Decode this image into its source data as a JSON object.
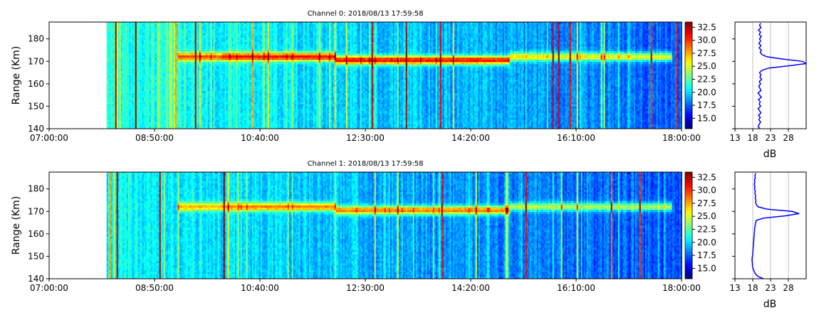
{
  "colorscale": [
    "#00007f",
    "#0000ff",
    "#007fff",
    "#00ffff",
    "#7fff7f",
    "#ffff00",
    "#ff7f00",
    "#ff0000",
    "#7f0000"
  ],
  "chart_data": [
    {
      "type": "heatmap",
      "title": "Channel 0: 2018/08/13 17:59:58",
      "ylabel": "Range (Km)",
      "xlabel": "",
      "x_ticks": [
        "07:00:00",
        "08:50:00",
        "10:40:00",
        "12:30:00",
        "14:20:00",
        "16:10:00",
        "18:00:00"
      ],
      "x_range": [
        "07:00:00",
        "18:00:00"
      ],
      "data_start": "08:00:00",
      "y_ticks": [
        140,
        150,
        160,
        170,
        180
      ],
      "ylim": [
        140,
        187.5
      ],
      "colorbar": {
        "ticks": [
          "15.0",
          "17.5",
          "20.0",
          "22.5",
          "25.0",
          "27.5",
          "30.0",
          "32.5"
        ],
        "range": [
          13,
          33.5
        ]
      },
      "layer": {
        "range_km": 172,
        "start": "09:15:00",
        "end": "17:50:00",
        "peak_db": 31
      },
      "profile": {
        "xlabel": "dB",
        "x_ticks": [
          13,
          18,
          23,
          28
        ],
        "xlim": [
          13,
          33
        ],
        "grid": true,
        "range_km": [
          140,
          141,
          142,
          143,
          144,
          145,
          146,
          147,
          148,
          149,
          150,
          151,
          152,
          153,
          154,
          155,
          156,
          157,
          158,
          159,
          160,
          161,
          162,
          163,
          164,
          165,
          166,
          167,
          168,
          169,
          170,
          171,
          172,
          173,
          174,
          175,
          176,
          177,
          178,
          179,
          180,
          181,
          182,
          183,
          184,
          185,
          186,
          187
        ],
        "db": [
          20,
          19.5,
          19.8,
          20.2,
          19.7,
          20.1,
          19.6,
          20.3,
          19.9,
          19.5,
          20.2,
          19.8,
          20.1,
          19.6,
          20.4,
          19.9,
          19.5,
          20.3,
          20.0,
          19.7,
          20.2,
          19.8,
          20.5,
          20.0,
          20.3,
          19.9,
          20.6,
          22.5,
          28,
          33,
          32,
          26.5,
          22,
          20.6,
          20.1,
          20.4,
          19.8,
          20.3,
          19.7,
          20.2,
          19.9,
          20.4,
          19.8,
          20.2,
          19.6,
          20.3,
          19.9,
          20.2
        ]
      }
    },
    {
      "type": "heatmap",
      "title": "Channel 1: 2018/08/13 17:59:58",
      "ylabel": "Range (Km)",
      "xlabel": "",
      "x_ticks": [
        "07:00:00",
        "08:50:00",
        "10:40:00",
        "12:30:00",
        "14:20:00",
        "16:10:00",
        "18:00:00"
      ],
      "x_range": [
        "07:00:00",
        "18:00:00"
      ],
      "data_start": "08:00:00",
      "y_ticks": [
        140,
        150,
        160,
        170,
        180
      ],
      "ylim": [
        140,
        187.5
      ],
      "colorbar": {
        "ticks": [
          "15.0",
          "17.5",
          "20.0",
          "22.5",
          "25.0",
          "27.5",
          "30.0",
          "32.5"
        ],
        "range": [
          13,
          33.5
        ]
      },
      "layer": {
        "range_km": 172,
        "start": "09:15:00",
        "end": "17:50:00",
        "peak_db": 28.5
      },
      "profile": {
        "xlabel": "dB",
        "x_ticks": [
          13,
          18,
          23,
          28
        ],
        "xlim": [
          13,
          33
        ],
        "grid": true,
        "range_km": [
          140,
          141,
          142,
          143,
          144,
          145,
          146,
          147,
          148,
          149,
          150,
          151,
          152,
          153,
          154,
          155,
          156,
          157,
          158,
          159,
          160,
          161,
          162,
          163,
          164,
          165,
          166,
          167,
          168,
          169,
          170,
          171,
          172,
          173,
          174,
          175,
          176,
          177,
          178,
          179,
          180,
          181,
          182,
          183,
          184,
          185,
          186,
          187
        ],
        "db": [
          21,
          19.5,
          18.8,
          18.5,
          18.2,
          18.0,
          17.9,
          17.9,
          17.8,
          17.8,
          17.9,
          18.0,
          18.0,
          18.1,
          18.1,
          18.2,
          18.2,
          18.3,
          18.3,
          18.4,
          18.4,
          18.5,
          18.5,
          18.6,
          18.7,
          18.8,
          19.0,
          21,
          27,
          31,
          29,
          22,
          19.5,
          19.0,
          18.8,
          18.9,
          18.7,
          18.8,
          18.6,
          18.7,
          18.5,
          18.6,
          18.4,
          18.6,
          18.5,
          18.7,
          18.6,
          18.8
        ]
      }
    }
  ]
}
